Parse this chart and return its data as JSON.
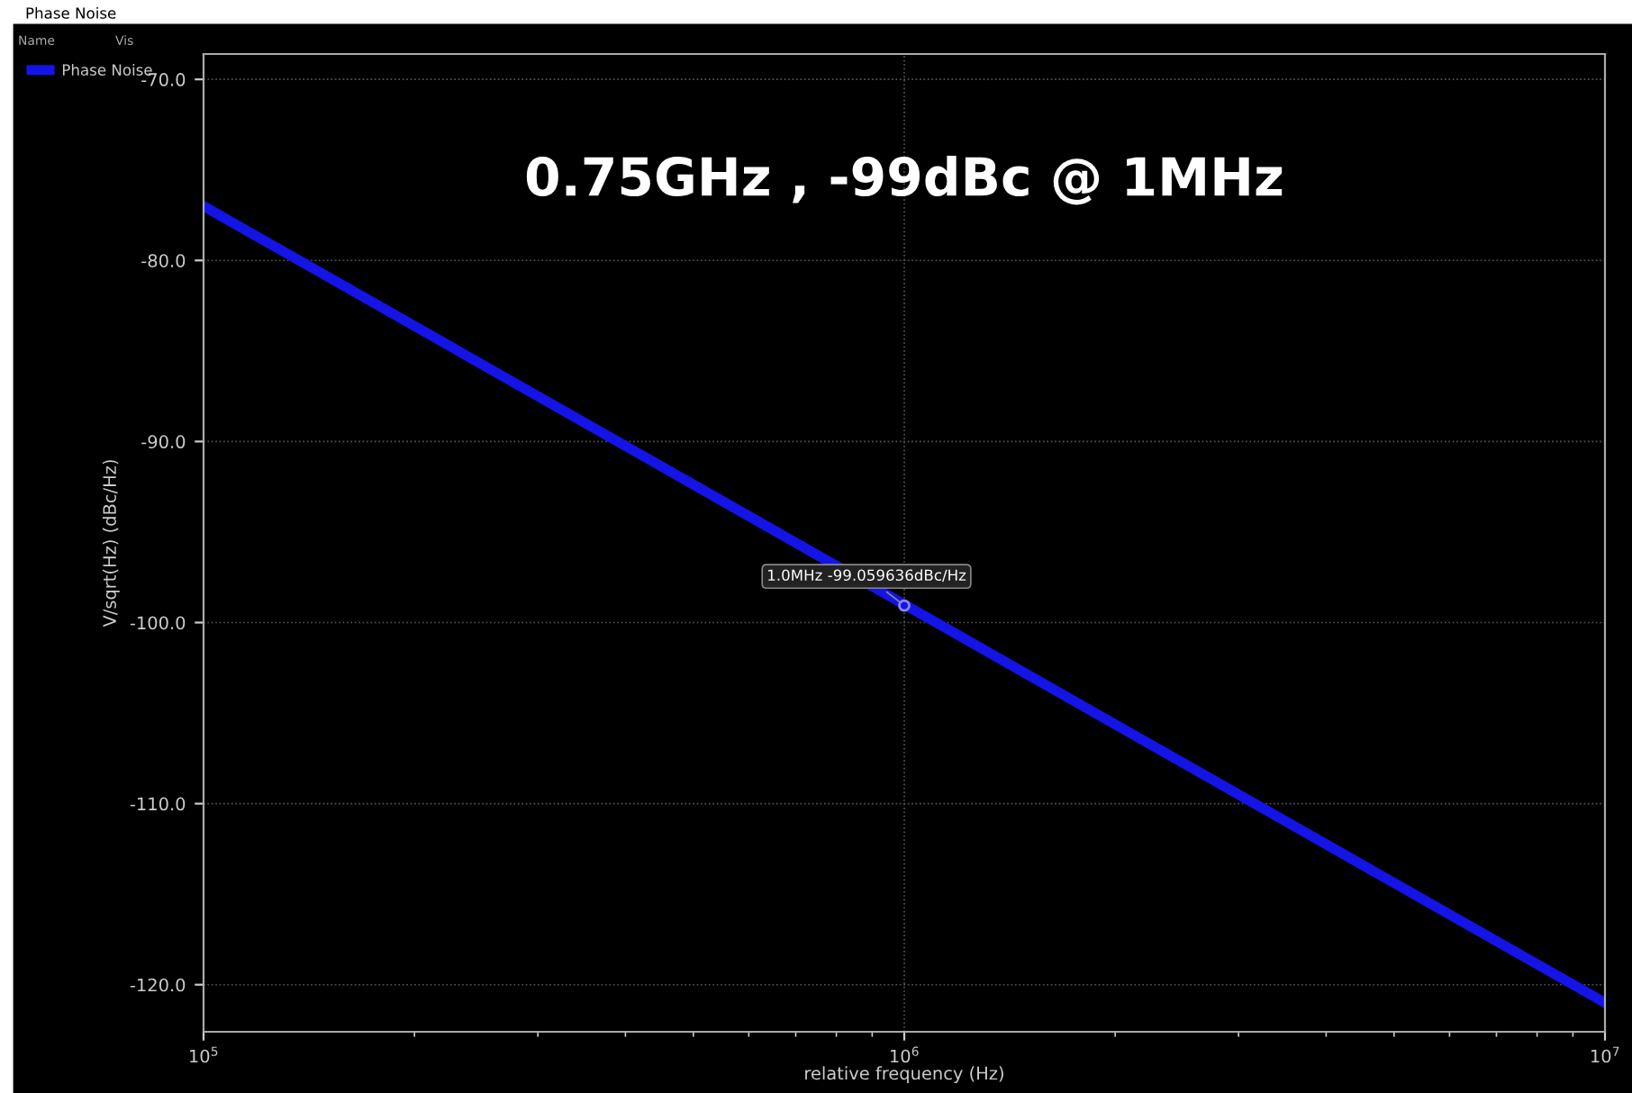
{
  "chart_data": {
    "type": "line",
    "title": "Phase Noise",
    "subtitle": "0.75GHz , -99dBc @ 1MHz",
    "xlabel": "relative frequency (Hz)",
    "ylabel": "V/sqrt(Hz) (dBc/Hz)",
    "x": [
      100000,
      1000000,
      10000000
    ],
    "series": [
      {
        "name": "Phase Noise",
        "color": "#1414e6",
        "values": [
          -77,
          -99,
          -121
        ]
      }
    ],
    "log": "x",
    "xlim": [
      100000,
      10000000
    ],
    "xticks": [
      {
        "value": 100000,
        "label": "10$^{5}$"
      },
      {
        "value": 1000000,
        "label": "10$^{6}$"
      },
      {
        "value": 10000000,
        "label": "10$^{7}$"
      }
    ],
    "ylim": [
      -122.6,
      -68.6
    ],
    "yticks": [
      {
        "value": -70,
        "label": "-70.0"
      },
      {
        "value": -80,
        "label": "-80.0"
      },
      {
        "value": -90,
        "label": "-90.0"
      },
      {
        "value": -100,
        "label": "-100.0"
      },
      {
        "value": -110,
        "label": "-110.0"
      },
      {
        "value": -120,
        "label": "-120.0"
      }
    ],
    "annotations": [
      {
        "text": "1.0MHz -99.059636dBc/Hz",
        "x": 1000000,
        "y": -99.059636
      },
      "Name",
      "Vis"
    ],
    "grid": true,
    "legend": "top left",
    "marker": "none",
    "line_style": "solid"
  }
}
